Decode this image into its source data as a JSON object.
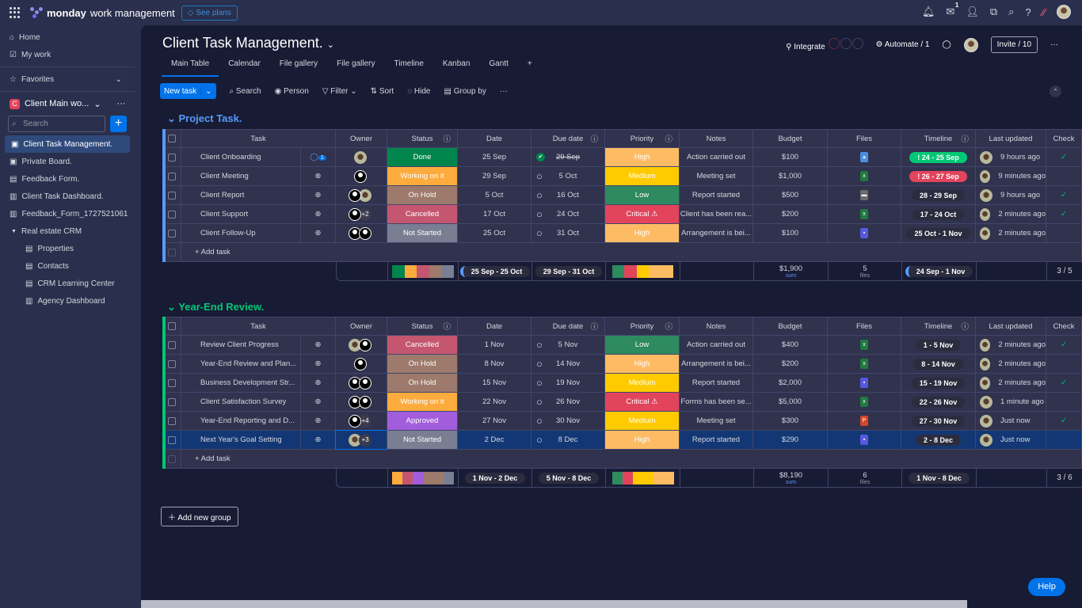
{
  "topbar": {
    "brand_bold": "monday",
    "brand_rest": "work management",
    "see_plans": "See plans",
    "inbox_badge": "1"
  },
  "sidebar": {
    "home": "Home",
    "my_work": "My work",
    "favorites": "Favorites",
    "workspace": "Client Main wo...",
    "workspace_initial": "C",
    "search_placeholder": "Search",
    "boards": [
      "Client Task Management.",
      "Private Board.",
      "Feedback Form.",
      "Client Task Dashboard.",
      "Feedback_Form_1727521061"
    ],
    "folder": "Real estate CRM",
    "folder_items": [
      "Properties",
      "Contacts",
      "CRM Learning Center",
      "Agency Dashboard"
    ]
  },
  "header": {
    "title": "Client Task Management.",
    "integrate": "Integrate",
    "automate": "Automate / 1",
    "invite": "Invite / 10"
  },
  "tabs": [
    "Main Table",
    "Calendar",
    "File gallery",
    "File gallery",
    "Timeline",
    "Kanban",
    "Gantt",
    "+"
  ],
  "toolbar": {
    "new_task": "New task",
    "search": "Search",
    "person": "Person",
    "filter": "Filter",
    "sort": "Sort",
    "hide": "Hide",
    "group_by": "Group by"
  },
  "columns": [
    "Task",
    "Owner",
    "Status",
    "Date",
    "Due date",
    "Priority",
    "Notes",
    "Budget",
    "Files",
    "Timeline",
    "Last updated",
    "Check"
  ],
  "colors": {
    "Done": "#00854d",
    "Working on it": "#fdab3d",
    "On Hold": "#9d7a6b",
    "Cancelled": "#c4566f",
    "Not Started": "#797e93",
    "Approved": "#a25ddc",
    "High": "#fdbc64",
    "Medium": "#ffcb00",
    "Low": "#2e8a5f",
    "Critical ⚠": "#e2445c",
    "xls": "#1f7a3f",
    "doc": "#5559df",
    "ppt": "#d24726",
    "img": "#4a90e2",
    "vid": "#6b6b6b"
  },
  "groups": [
    {
      "title": "Project Task.",
      "color": "#579bfc",
      "add_task": "+ Add task",
      "rows": [
        {
          "task": "Client Onboarding",
          "owner": [
            "photo"
          ],
          "status": "Done",
          "date": "25 Sep",
          "due": "29 Sep",
          "due_done": true,
          "priority": "High",
          "notes": "Action carried out",
          "budget": "$100",
          "file": "img",
          "timeline": "24 - 25 Sep",
          "tl_color": "#00c875",
          "tl_alert": true,
          "updated": "9 hours ago",
          "check": true,
          "updates": "1"
        },
        {
          "task": "Client Meeting",
          "owner": [
            "person"
          ],
          "status": "Working on it",
          "date": "29 Sep",
          "due": "5 Oct",
          "priority": "Medium",
          "notes": "Meeting set",
          "budget": "$1,000",
          "file": "xls",
          "timeline": "26 - 27 Sep",
          "tl_color": "#e2445c",
          "tl_alert": true,
          "updated": "9 minutes ago",
          "check": false
        },
        {
          "task": "Client Report",
          "owner": [
            "person",
            "photo"
          ],
          "status": "On Hold",
          "date": "5 Oct",
          "due": "16 Oct",
          "priority": "Low",
          "notes": "Report started",
          "budget": "$500",
          "file": "vid",
          "timeline": "28 - 29 Sep",
          "updated": "9 hours ago",
          "check": true
        },
        {
          "task": "Client Support",
          "owner": [
            "person",
            "+2"
          ],
          "status": "Cancelled",
          "date": "17 Oct",
          "due": "24 Oct",
          "priority": "Critical ⚠",
          "notes": "Client has been rea...",
          "budget": "$200",
          "file": "xls",
          "timeline": "17 - 24 Oct",
          "updated": "2 minutes ago",
          "check": true
        },
        {
          "task": "Client Follow-Up",
          "owner": [
            "person",
            "person"
          ],
          "status": "Not Started",
          "date": "25 Oct",
          "due": "31 Oct",
          "priority": "High",
          "notes": "Arrangement is bei...",
          "budget": "$100",
          "file": "doc",
          "timeline": "25 Oct - 1 Nov",
          "updated": "2 minutes ago",
          "check": false
        }
      ],
      "summary": {
        "status_mix": [
          "Done",
          "Working on it",
          "Cancelled",
          "On Hold",
          "Not Started"
        ],
        "date": "25 Sep - 25 Oct",
        "due": "29 Sep - 31 Oct",
        "priority_mix": [
          "Low",
          "Critical ⚠",
          "Medium",
          "High",
          "High"
        ],
        "budget": "$1,900",
        "budget_label": "sum",
        "files": "5",
        "files_label": "files",
        "timeline": "24 Sep - 1 Nov",
        "check": "3 / 5"
      }
    },
    {
      "title": "Year-End Review.",
      "color": "#00c875",
      "add_task": "+ Add task",
      "rows": [
        {
          "task": "Review Client Progress",
          "owner": [
            "photo",
            "person"
          ],
          "status": "Cancelled",
          "date": "1 Nov",
          "due": "5 Nov",
          "priority": "Low",
          "notes": "Action carried out",
          "budget": "$400",
          "file": "xls",
          "timeline": "1 - 5 Nov",
          "updated": "2 minutes ago",
          "check": true
        },
        {
          "task": "Year-End Review and Plan...",
          "owner": [
            "person"
          ],
          "status": "On Hold",
          "date": "8 Nov",
          "due": "14 Nov",
          "priority": "High",
          "notes": "Arrangement is bei...",
          "budget": "$200",
          "file": "xls",
          "timeline": "8 - 14 Nov",
          "updated": "2 minutes ago",
          "check": false
        },
        {
          "task": "Business Development Str...",
          "owner": [
            "person",
            "person"
          ],
          "status": "On Hold",
          "date": "15 Nov",
          "due": "19 Nov",
          "priority": "Medium",
          "notes": "Report started",
          "budget": "$2,000",
          "file": "doc",
          "timeline": "15 - 19 Nov",
          "updated": "2 minutes ago",
          "check": true
        },
        {
          "task": "Client Satisfaction Survey",
          "owner": [
            "person",
            "person"
          ],
          "status": "Working on it",
          "date": "22 Nov",
          "due": "26 Nov",
          "priority": "Critical ⚠",
          "notes": "Forms has been se...",
          "budget": "$5,000",
          "file": "xls",
          "timeline": "22 - 26 Nov",
          "updated": "1 minute ago",
          "check": false
        },
        {
          "task": "Year-End Reporting and D...",
          "owner": [
            "person",
            "+4"
          ],
          "status": "Approved",
          "date": "27 Nov",
          "due": "30 Nov",
          "priority": "Medium",
          "notes": "Meeting set",
          "budget": "$300",
          "file": "ppt",
          "timeline": "27 - 30 Nov",
          "updated": "Just now",
          "check": true
        },
        {
          "task": "Next Year's Goal Setting",
          "owner": [
            "photo",
            "+3"
          ],
          "status": "Not Started",
          "date": "2 Dec",
          "due": "8 Dec",
          "priority": "High",
          "notes": "Report started",
          "budget": "$290",
          "file": "doc",
          "timeline": "2 - 8 Dec",
          "updated": "Just now",
          "check": false,
          "selected": true
        }
      ],
      "summary": {
        "status_mix": [
          "Working on it",
          "Cancelled",
          "Approved",
          "On Hold",
          "On Hold",
          "Not Started"
        ],
        "date": "1 Nov - 2 Dec",
        "due": "5 Nov - 8 Dec",
        "priority_mix": [
          "Low",
          "Critical ⚠",
          "Medium",
          "Medium",
          "High",
          "High"
        ],
        "budget": "$8,190",
        "budget_label": "sum",
        "files": "6",
        "files_label": "files",
        "timeline": "1 Nov - 8 Dec",
        "check": "3 / 6"
      }
    }
  ],
  "add_group": "Add new group",
  "help": "Help"
}
